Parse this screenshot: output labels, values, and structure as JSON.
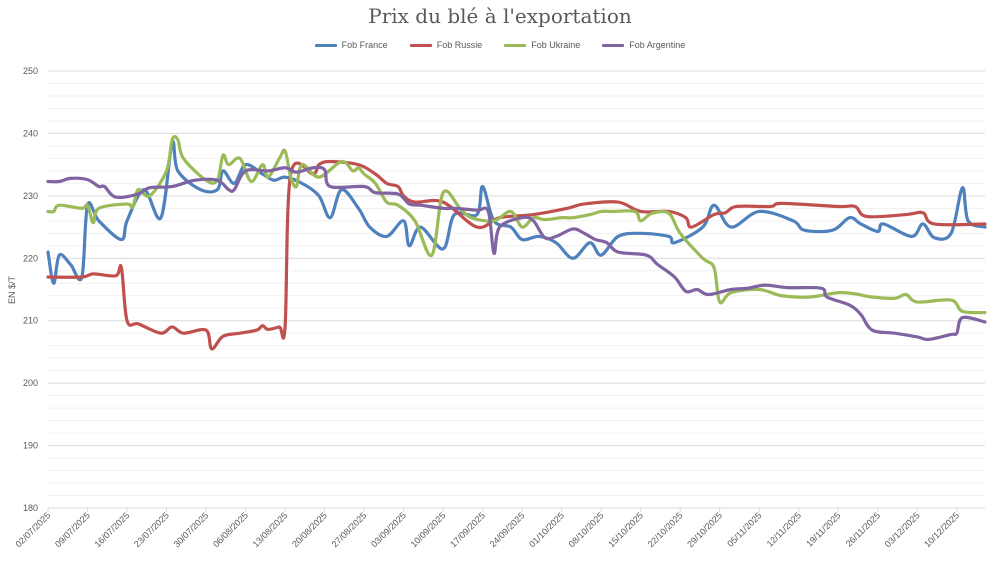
{
  "chart_data": {
    "type": "line",
    "title": "Prix du blé à l'exportation",
    "ylabel": "EN $/T",
    "xlabel": "",
    "ylim": [
      180,
      250
    ],
    "yticks": [
      180,
      190,
      200,
      210,
      220,
      230,
      240,
      250
    ],
    "xlim": [
      "2025-07-02",
      "2025-12-15"
    ],
    "xtick_labels": [
      "02/07/2025",
      "09/07/2025",
      "16/07/2025",
      "23/07/2025",
      "30/07/2025",
      "06/08/2025",
      "13/08/2025",
      "20/08/2025",
      "27/08/2025",
      "03/09/2025",
      "10/09/2025",
      "17/09/2025",
      "24/09/2025",
      "01/10/2025",
      "08/10/2025",
      "15/10/2025",
      "22/10/2025",
      "29/10/2025",
      "05/11/2025",
      "12/11/2025",
      "19/11/2025",
      "26/11/2025",
      "03/12/2025",
      "10/12/2025"
    ],
    "grid": true,
    "legend": "top",
    "series": [
      {
        "name": "Fob France",
        "color": "#4f81bd",
        "points": [
          [
            "2025-07-02",
            221
          ],
          [
            "2025-07-03",
            216
          ],
          [
            "2025-07-04",
            220.5
          ],
          [
            "2025-07-06",
            219
          ],
          [
            "2025-07-08",
            217
          ],
          [
            "2025-07-09",
            228.5
          ],
          [
            "2025-07-11",
            226
          ],
          [
            "2025-07-15",
            223
          ],
          [
            "2025-07-16",
            226
          ],
          [
            "2025-07-19",
            231
          ],
          [
            "2025-07-22",
            226.5
          ],
          [
            "2025-07-24",
            238.5
          ],
          [
            "2025-07-25",
            234
          ],
          [
            "2025-07-29",
            231
          ],
          [
            "2025-08-01",
            231
          ],
          [
            "2025-08-02",
            234
          ],
          [
            "2025-08-04",
            232
          ],
          [
            "2025-08-06",
            235
          ],
          [
            "2025-08-09",
            233.5
          ],
          [
            "2025-08-11",
            232.5
          ],
          [
            "2025-08-13",
            233
          ],
          [
            "2025-08-16",
            232
          ],
          [
            "2025-08-19",
            230
          ],
          [
            "2025-08-21",
            226.5
          ],
          [
            "2025-08-23",
            231
          ],
          [
            "2025-08-26",
            228
          ],
          [
            "2025-08-28",
            225
          ],
          [
            "2025-08-31",
            223.5
          ],
          [
            "2025-09-03",
            226
          ],
          [
            "2025-09-04",
            222
          ],
          [
            "2025-09-06",
            225
          ],
          [
            "2025-09-10",
            221.5
          ],
          [
            "2025-09-12",
            227
          ],
          [
            "2025-09-16",
            227
          ],
          [
            "2025-09-17",
            231.5
          ],
          [
            "2025-09-19",
            226
          ],
          [
            "2025-09-22",
            225
          ],
          [
            "2025-09-24",
            223
          ],
          [
            "2025-09-27",
            223.5
          ],
          [
            "2025-09-30",
            222.5
          ],
          [
            "2025-10-03",
            220
          ],
          [
            "2025-10-06",
            222.5
          ],
          [
            "2025-10-08",
            220.5
          ],
          [
            "2025-10-11",
            223.5
          ],
          [
            "2025-10-15",
            224
          ],
          [
            "2025-10-20",
            223.5
          ],
          [
            "2025-10-21",
            222.5
          ],
          [
            "2025-10-26",
            225
          ],
          [
            "2025-10-28",
            228.5
          ],
          [
            "2025-10-31",
            225
          ],
          [
            "2025-11-05",
            227.5
          ],
          [
            "2025-11-11",
            226
          ],
          [
            "2025-11-13",
            224.5
          ],
          [
            "2025-11-18",
            224.5
          ],
          [
            "2025-11-21",
            226.5
          ],
          [
            "2025-11-23",
            225.5
          ],
          [
            "2025-11-26",
            224.3
          ],
          [
            "2025-11-27",
            225.5
          ],
          [
            "2025-12-02",
            223.5
          ],
          [
            "2025-12-04",
            225.5
          ],
          [
            "2025-12-06",
            223.3
          ],
          [
            "2025-12-09",
            224
          ],
          [
            "2025-12-11",
            231.3
          ],
          [
            "2025-12-12",
            226
          ],
          [
            "2025-12-15",
            225
          ]
        ]
      },
      {
        "name": "Fob Russie",
        "color": "#c0504d",
        "points": [
          [
            "2025-07-02",
            217
          ],
          [
            "2025-07-08",
            217
          ],
          [
            "2025-07-10",
            217.5
          ],
          [
            "2025-07-14",
            217.2
          ],
          [
            "2025-07-15",
            218.5
          ],
          [
            "2025-07-16",
            210
          ],
          [
            "2025-07-18",
            209.5
          ],
          [
            "2025-07-22",
            208
          ],
          [
            "2025-07-24",
            209
          ],
          [
            "2025-07-26",
            208
          ],
          [
            "2025-07-30",
            208.5
          ],
          [
            "2025-07-31",
            205.5
          ],
          [
            "2025-08-02",
            207.5
          ],
          [
            "2025-08-05",
            208
          ],
          [
            "2025-08-08",
            208.5
          ],
          [
            "2025-08-09",
            209.2
          ],
          [
            "2025-08-10",
            208.6
          ],
          [
            "2025-08-12",
            209
          ],
          [
            "2025-08-13",
            209
          ],
          [
            "2025-08-14",
            233.5
          ],
          [
            "2025-08-18",
            233.5
          ],
          [
            "2025-08-19",
            235
          ],
          [
            "2025-08-21",
            235.5
          ],
          [
            "2025-08-26",
            235
          ],
          [
            "2025-08-29",
            233.5
          ],
          [
            "2025-08-31",
            232
          ],
          [
            "2025-09-02",
            231.5
          ],
          [
            "2025-09-03",
            230
          ],
          [
            "2025-09-05",
            229
          ],
          [
            "2025-09-10",
            229
          ],
          [
            "2025-09-16",
            225
          ],
          [
            "2025-09-20",
            226.5
          ],
          [
            "2025-09-26",
            227
          ],
          [
            "2025-10-02",
            228
          ],
          [
            "2025-10-05",
            228.7
          ],
          [
            "2025-10-11",
            229
          ],
          [
            "2025-10-15",
            227.5
          ],
          [
            "2025-10-20",
            227.5
          ],
          [
            "2025-10-23",
            226.5
          ],
          [
            "2025-10-24",
            225
          ],
          [
            "2025-10-28",
            227
          ],
          [
            "2025-10-30",
            227.3
          ],
          [
            "2025-11-01",
            228.3
          ],
          [
            "2025-11-07",
            228.3
          ],
          [
            "2025-11-09",
            228.8
          ],
          [
            "2025-11-19",
            228.3
          ],
          [
            "2025-11-22",
            228.3
          ],
          [
            "2025-11-24",
            226.7
          ],
          [
            "2025-12-01",
            227
          ],
          [
            "2025-12-04",
            227.3
          ],
          [
            "2025-12-06",
            225.5
          ],
          [
            "2025-12-15",
            225.5
          ]
        ]
      },
      {
        "name": "Fob Ukraine",
        "color": "#9bbb59",
        "points": [
          [
            "2025-07-02",
            227.5
          ],
          [
            "2025-07-03",
            227.5
          ],
          [
            "2025-07-04",
            228.5
          ],
          [
            "2025-07-08",
            228
          ],
          [
            "2025-07-09",
            228.5
          ],
          [
            "2025-07-10",
            225.7
          ],
          [
            "2025-07-11",
            228
          ],
          [
            "2025-07-16",
            228.7
          ],
          [
            "2025-07-17",
            228.2
          ],
          [
            "2025-07-18",
            231
          ],
          [
            "2025-07-20",
            230
          ],
          [
            "2025-07-23",
            234
          ],
          [
            "2025-07-24",
            239
          ],
          [
            "2025-07-25",
            239
          ],
          [
            "2025-07-26",
            236
          ],
          [
            "2025-07-30",
            232.5
          ],
          [
            "2025-08-01",
            232.5
          ],
          [
            "2025-08-02",
            236.5
          ],
          [
            "2025-08-03",
            235
          ],
          [
            "2025-08-05",
            236
          ],
          [
            "2025-08-07",
            232.3
          ],
          [
            "2025-08-09",
            235
          ],
          [
            "2025-08-10",
            233
          ],
          [
            "2025-08-12",
            236
          ],
          [
            "2025-08-13",
            237.2
          ],
          [
            "2025-08-14",
            233
          ],
          [
            "2025-08-15",
            231.5
          ],
          [
            "2025-08-16",
            235
          ],
          [
            "2025-08-19",
            233
          ],
          [
            "2025-08-23",
            235.5
          ],
          [
            "2025-08-25",
            234
          ],
          [
            "2025-08-26",
            234.5
          ],
          [
            "2025-08-27",
            233.5
          ],
          [
            "2025-08-29",
            232
          ],
          [
            "2025-08-31",
            229
          ],
          [
            "2025-09-02",
            228.5
          ],
          [
            "2025-09-05",
            226
          ],
          [
            "2025-09-08",
            220.5
          ],
          [
            "2025-09-10",
            230.5
          ],
          [
            "2025-09-13",
            228
          ],
          [
            "2025-09-15",
            226.5
          ],
          [
            "2025-09-19",
            226
          ],
          [
            "2025-09-22",
            227.5
          ],
          [
            "2025-09-24",
            225
          ],
          [
            "2025-09-26",
            226.5
          ],
          [
            "2025-09-28",
            226.2
          ],
          [
            "2025-10-01",
            226.5
          ],
          [
            "2025-10-03",
            226.5
          ],
          [
            "2025-10-06",
            227
          ],
          [
            "2025-10-08",
            227.5
          ],
          [
            "2025-10-10",
            227.5
          ],
          [
            "2025-10-14",
            227.5
          ],
          [
            "2025-10-15",
            226
          ],
          [
            "2025-10-17",
            227.2
          ],
          [
            "2025-10-20",
            227.2
          ],
          [
            "2025-10-22",
            224
          ],
          [
            "2025-10-26",
            220
          ],
          [
            "2025-10-28",
            218.5
          ],
          [
            "2025-10-29",
            213
          ],
          [
            "2025-10-31",
            214.5
          ],
          [
            "2025-11-05",
            215
          ],
          [
            "2025-11-09",
            214
          ],
          [
            "2025-11-14",
            213.8
          ],
          [
            "2025-11-19",
            214.5
          ],
          [
            "2025-11-22",
            214.3
          ],
          [
            "2025-11-25",
            213.8
          ],
          [
            "2025-11-29",
            213.6
          ],
          [
            "2025-12-01",
            214.2
          ],
          [
            "2025-12-03",
            213
          ],
          [
            "2025-12-09",
            213.3
          ],
          [
            "2025-12-11",
            211.5
          ],
          [
            "2025-12-15",
            211.3
          ]
        ]
      },
      {
        "name": "Fob Argentine",
        "color": "#8064a2",
        "points": [
          [
            "2025-07-02",
            232.3
          ],
          [
            "2025-07-04",
            232.3
          ],
          [
            "2025-07-06",
            232.8
          ],
          [
            "2025-07-09",
            232.6
          ],
          [
            "2025-07-11",
            231.5
          ],
          [
            "2025-07-12",
            231.5
          ],
          [
            "2025-07-14",
            229.8
          ],
          [
            "2025-07-18",
            230.3
          ],
          [
            "2025-07-20",
            231.3
          ],
          [
            "2025-07-24",
            231.5
          ],
          [
            "2025-07-28",
            232.5
          ],
          [
            "2025-08-01",
            232.5
          ],
          [
            "2025-08-03",
            231
          ],
          [
            "2025-08-04",
            231
          ],
          [
            "2025-08-06",
            234
          ],
          [
            "2025-08-10",
            234
          ],
          [
            "2025-08-13",
            234.5
          ],
          [
            "2025-08-15",
            233.8
          ],
          [
            "2025-08-18",
            234.5
          ],
          [
            "2025-08-20",
            234.2
          ],
          [
            "2025-08-21",
            231.5
          ],
          [
            "2025-08-27",
            231.5
          ],
          [
            "2025-08-29",
            230.5
          ],
          [
            "2025-09-02",
            230.3
          ],
          [
            "2025-09-04",
            228.7
          ],
          [
            "2025-09-06",
            228.5
          ],
          [
            "2025-09-10",
            228
          ],
          [
            "2025-09-12",
            228
          ],
          [
            "2025-09-16",
            227.7
          ],
          [
            "2025-09-18",
            227.5
          ],
          [
            "2025-09-19",
            220.8
          ],
          [
            "2025-09-20",
            225
          ],
          [
            "2025-09-24",
            226.5
          ],
          [
            "2025-09-26",
            226
          ],
          [
            "2025-09-28",
            223.3
          ],
          [
            "2025-09-30",
            223.5
          ],
          [
            "2025-10-03",
            224.7
          ],
          [
            "2025-10-05",
            224
          ],
          [
            "2025-10-07",
            223
          ],
          [
            "2025-10-09",
            222.5
          ],
          [
            "2025-10-11",
            221
          ],
          [
            "2025-10-16",
            220.5
          ],
          [
            "2025-10-18",
            219
          ],
          [
            "2025-10-21",
            217
          ],
          [
            "2025-10-23",
            214.7
          ],
          [
            "2025-10-25",
            215
          ],
          [
            "2025-10-27",
            214.2
          ],
          [
            "2025-10-31",
            215
          ],
          [
            "2025-11-03",
            215.2
          ],
          [
            "2025-11-06",
            215.7
          ],
          [
            "2025-11-10",
            215.3
          ],
          [
            "2025-11-16",
            215.2
          ],
          [
            "2025-11-17",
            213.8
          ],
          [
            "2025-11-21",
            212.5
          ],
          [
            "2025-11-23",
            211
          ],
          [
            "2025-11-25",
            208.5
          ],
          [
            "2025-11-29",
            208
          ],
          [
            "2025-12-03",
            207.4
          ],
          [
            "2025-12-05",
            207
          ],
          [
            "2025-12-09",
            207.8
          ],
          [
            "2025-12-10",
            208
          ],
          [
            "2025-12-11",
            210.5
          ],
          [
            "2025-12-15",
            209.8
          ]
        ]
      }
    ]
  }
}
